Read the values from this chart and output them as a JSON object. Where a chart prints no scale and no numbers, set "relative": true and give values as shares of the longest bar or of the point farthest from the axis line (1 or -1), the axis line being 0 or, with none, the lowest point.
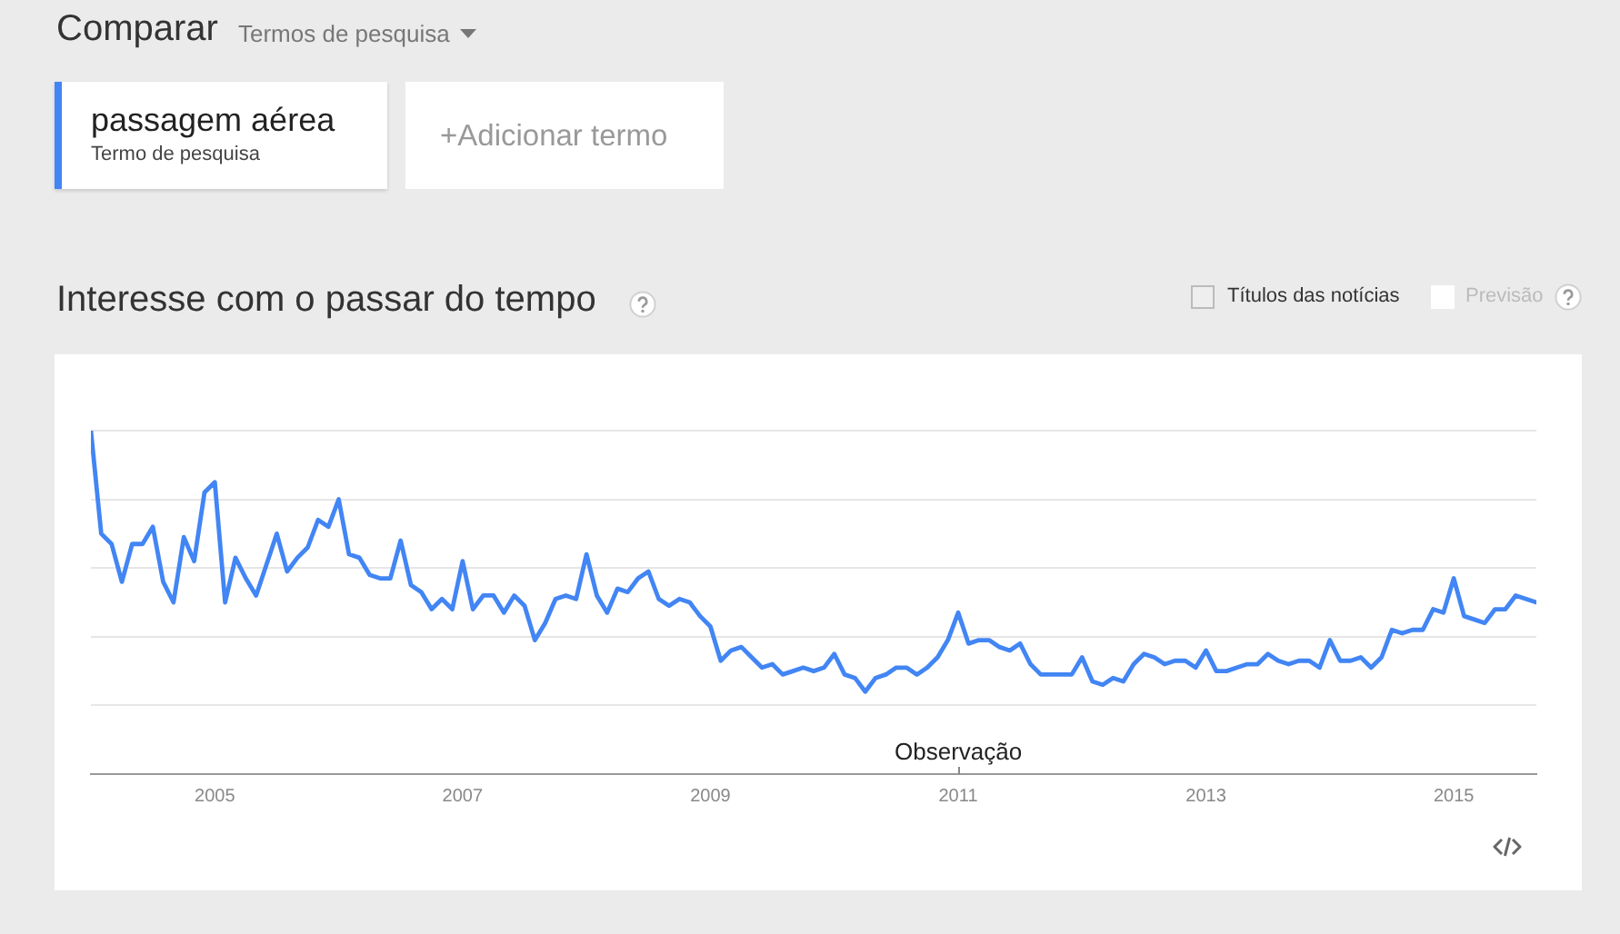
{
  "chart_data": {
    "type": "line",
    "title": "Interesse com o passar do tempo",
    "relative": true,
    "grid": "y",
    "legend": "top left",
    "marker": "none",
    "xlim": [
      "2004-01",
      "2015-09"
    ],
    "xticks": [
      "2005",
      "2007",
      "2009",
      "2011",
      "2013",
      "2015"
    ],
    "x": [
      "2004-01",
      "2004-02",
      "2004-03",
      "2004-04",
      "2004-05",
      "2004-06",
      "2004-07",
      "2004-08",
      "2004-09",
      "2004-10",
      "2004-11",
      "2004-12",
      "2005-01",
      "2005-02",
      "2005-03",
      "2005-04",
      "2005-05",
      "2005-06",
      "2005-07",
      "2005-08",
      "2005-09",
      "2005-10",
      "2005-11",
      "2005-12",
      "2006-01",
      "2006-02",
      "2006-03",
      "2006-04",
      "2006-05",
      "2006-06",
      "2006-07",
      "2006-08",
      "2006-09",
      "2006-10",
      "2006-11",
      "2006-12",
      "2007-01",
      "2007-02",
      "2007-03",
      "2007-04",
      "2007-05",
      "2007-06",
      "2007-07",
      "2007-08",
      "2007-09",
      "2007-10",
      "2007-11",
      "2007-12",
      "2008-01",
      "2008-02",
      "2008-03",
      "2008-04",
      "2008-05",
      "2008-06",
      "2008-07",
      "2008-08",
      "2008-09",
      "2008-10",
      "2008-11",
      "2008-12",
      "2009-01",
      "2009-02",
      "2009-03",
      "2009-04",
      "2009-05",
      "2009-06",
      "2009-07",
      "2009-08",
      "2009-09",
      "2009-10",
      "2009-11",
      "2009-12",
      "2010-01",
      "2010-02",
      "2010-03",
      "2010-04",
      "2010-05",
      "2010-06",
      "2010-07",
      "2010-08",
      "2010-09",
      "2010-10",
      "2010-11",
      "2010-12",
      "2011-01",
      "2011-02",
      "2011-03",
      "2011-04",
      "2011-05",
      "2011-06",
      "2011-07",
      "2011-08",
      "2011-09",
      "2011-10",
      "2011-11",
      "2011-12",
      "2012-01",
      "2012-02",
      "2012-03",
      "2012-04",
      "2012-05",
      "2012-06",
      "2012-07",
      "2012-08",
      "2012-09",
      "2012-10",
      "2012-11",
      "2012-12",
      "2013-01",
      "2013-02",
      "2013-03",
      "2013-04",
      "2013-05",
      "2013-06",
      "2013-07",
      "2013-08",
      "2013-09",
      "2013-10",
      "2013-11",
      "2013-12",
      "2014-01",
      "2014-02",
      "2014-03",
      "2014-04",
      "2014-05",
      "2014-06",
      "2014-07",
      "2014-08",
      "2014-09",
      "2014-10",
      "2014-11",
      "2014-12",
      "2015-01",
      "2015-02",
      "2015-03",
      "2015-04",
      "2015-05",
      "2015-06",
      "2015-07",
      "2015-08",
      "2015-09"
    ],
    "series": [
      {
        "name": "passagem aérea",
        "color": "#4285f4",
        "values": [
          1,
          0.7,
          0.67,
          0.56,
          0.67,
          0.67,
          0.72,
          0.56,
          0.5,
          0.69,
          0.62,
          0.82,
          0.85,
          0.5,
          0.63,
          0.57,
          0.52,
          0.61,
          0.7,
          0.59,
          0.63,
          0.66,
          0.74,
          0.72,
          0.8,
          0.64,
          0.63,
          0.58,
          0.57,
          0.57,
          0.68,
          0.55,
          0.53,
          0.48,
          0.51,
          0.48,
          0.62,
          0.48,
          0.52,
          0.52,
          0.47,
          0.52,
          0.49,
          0.39,
          0.44,
          0.51,
          0.52,
          0.51,
          0.64,
          0.52,
          0.47,
          0.54,
          0.53,
          0.57,
          0.59,
          0.51,
          0.49,
          0.51,
          0.5,
          0.46,
          0.43,
          0.33,
          0.36,
          0.37,
          0.34,
          0.31,
          0.32,
          0.29,
          0.3,
          0.31,
          0.3,
          0.31,
          0.35,
          0.29,
          0.28,
          0.24,
          0.28,
          0.29,
          0.31,
          0.31,
          0.29,
          0.31,
          0.34,
          0.39,
          0.47,
          0.38,
          0.39,
          0.39,
          0.37,
          0.36,
          0.38,
          0.32,
          0.29,
          0.29,
          0.29,
          0.29,
          0.34,
          0.27,
          0.26,
          0.28,
          0.27,
          0.32,
          0.35,
          0.34,
          0.32,
          0.33,
          0.33,
          0.31,
          0.36,
          0.3,
          0.3,
          0.31,
          0.32,
          0.32,
          0.35,
          0.33,
          0.32,
          0.33,
          0.33,
          0.31,
          0.39,
          0.33,
          0.33,
          0.34,
          0.31,
          0.34,
          0.42,
          0.41,
          0.42,
          0.42,
          0.48,
          0.47,
          0.57,
          0.46,
          0.45,
          0.44,
          0.48,
          0.48,
          0.52,
          0.51,
          0.5
        ]
      }
    ],
    "annotations": [
      "Comparar",
      "Termos de pesquisa",
      "Termo de pesquisa",
      "+Adicionar termo",
      "Títulos das notícias",
      "Previsão",
      "Observação"
    ]
  }
}
